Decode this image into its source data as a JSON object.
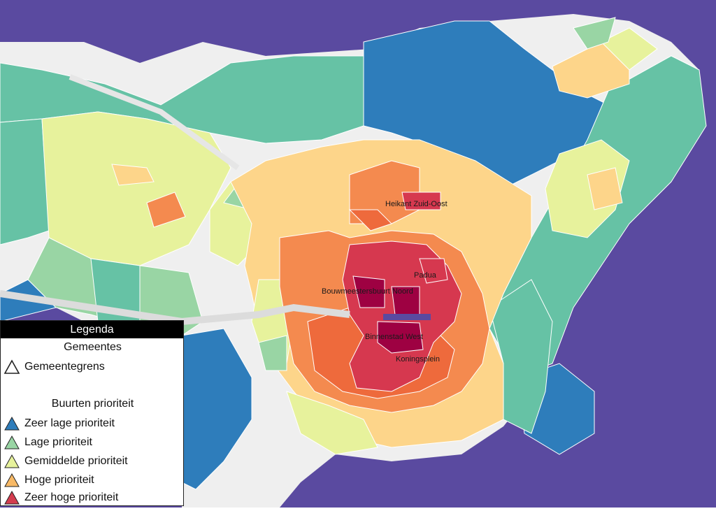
{
  "map": {
    "colors": {
      "outside": "#5a4aa0",
      "built_area": "#efefef",
      "very_low": "#2e7dbb",
      "low": "#99d5a4",
      "medium": "#e7f29c",
      "high": "#f7b966",
      "very_high": "#d43d4f",
      "teal": "#66c2a5",
      "yellowgreen": "#d4ec9a",
      "peach": "#fdd58a",
      "orange": "#f48a4f",
      "dark_orange": "#ee6a3c",
      "red": "#d6384f",
      "dark_red": "#9e0142",
      "lines": "#ffffff"
    },
    "labels": [
      {
        "id": "heikant",
        "text": "Heikant Zuid-Oost"
      },
      {
        "id": "padua",
        "text": "Padua"
      },
      {
        "id": "bouwmeester",
        "text": "Bouwmeestersbuurt Noord"
      },
      {
        "id": "binnenstad",
        "text": "Binnenstad West"
      },
      {
        "id": "koningsplein",
        "text": "Koningsplein"
      }
    ]
  },
  "legend": {
    "title": "Legenda",
    "group1_title": "Gemeentes",
    "boundary_label": "Gemeentegrens",
    "group2_title": "Buurten prioriteit",
    "items": [
      {
        "label": "Zeer lage prioriteit",
        "color": "#2e7dbb"
      },
      {
        "label": "Lage prioriteit",
        "color": "#99d5a4"
      },
      {
        "label": "Gemiddelde prioriteit",
        "color": "#e7f29c"
      },
      {
        "label": "Hoge prioriteit",
        "color": "#f7b966"
      },
      {
        "label": "Zeer hoge prioriteit",
        "color": "#d43d4f"
      }
    ]
  }
}
